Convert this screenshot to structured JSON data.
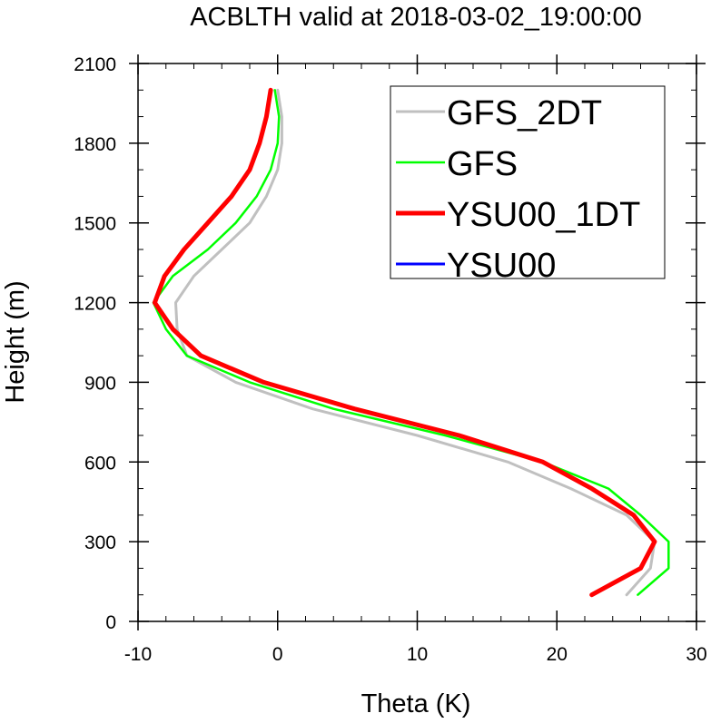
{
  "chart_data": {
    "type": "line",
    "title": "ACBLTH valid at 2018-03-02_19:00:00",
    "xlabel": "Theta (K)",
    "ylabel": "Height (m)",
    "xlim": [
      -10,
      30
    ],
    "ylim": [
      0,
      2100
    ],
    "xticks": [
      "-10",
      "0",
      "10",
      "20",
      "30"
    ],
    "yticks": [
      "0",
      "300",
      "600",
      "900",
      "1200",
      "1500",
      "1800",
      "2100"
    ],
    "legend_position": "top-right",
    "grid": false,
    "series": [
      {
        "name": "GFS_2DT",
        "color": "#c0c0c0",
        "points": [
          [
            25.0,
            100
          ],
          [
            26.7,
            200
          ],
          [
            27.0,
            300
          ],
          [
            25.0,
            400
          ],
          [
            21.0,
            500
          ],
          [
            16.5,
            600
          ],
          [
            10.0,
            700
          ],
          [
            2.5,
            800
          ],
          [
            -3.0,
            900
          ],
          [
            -6.5,
            1000
          ],
          [
            -7.2,
            1100
          ],
          [
            -7.3,
            1200
          ],
          [
            -6.0,
            1300
          ],
          [
            -4.0,
            1400
          ],
          [
            -2.0,
            1500
          ],
          [
            -0.8,
            1600
          ],
          [
            0.0,
            1700
          ],
          [
            0.3,
            1800
          ],
          [
            0.3,
            1900
          ],
          [
            0.0,
            2000
          ]
        ]
      },
      {
        "name": "GFS",
        "color": "#00ff00",
        "points": [
          [
            25.8,
            100
          ],
          [
            28.0,
            200
          ],
          [
            28.0,
            300
          ],
          [
            26.0,
            400
          ],
          [
            23.7,
            500
          ],
          [
            19.0,
            600
          ],
          [
            12.0,
            700
          ],
          [
            4.0,
            800
          ],
          [
            -2.0,
            900
          ],
          [
            -6.5,
            1000
          ],
          [
            -8.0,
            1100
          ],
          [
            -8.9,
            1200
          ],
          [
            -7.5,
            1300
          ],
          [
            -5.0,
            1400
          ],
          [
            -3.0,
            1500
          ],
          [
            -1.5,
            1600
          ],
          [
            -0.5,
            1700
          ],
          [
            0.0,
            1800
          ],
          [
            0.1,
            1900
          ],
          [
            -0.2,
            2000
          ]
        ]
      },
      {
        "name": "YSU00_1DT",
        "color": "#ff0000",
        "points": [
          [
            22.5,
            100
          ],
          [
            26.0,
            200
          ],
          [
            27.0,
            300
          ],
          [
            25.5,
            400
          ],
          [
            22.5,
            500
          ],
          [
            19.0,
            600
          ],
          [
            13.0,
            700
          ],
          [
            5.5,
            800
          ],
          [
            -1.0,
            900
          ],
          [
            -5.5,
            1000
          ],
          [
            -7.5,
            1100
          ],
          [
            -8.8,
            1200
          ],
          [
            -8.1,
            1300
          ],
          [
            -6.7,
            1400
          ],
          [
            -5.0,
            1500
          ],
          [
            -3.3,
            1600
          ],
          [
            -2.0,
            1700
          ],
          [
            -1.3,
            1800
          ],
          [
            -0.8,
            1900
          ],
          [
            -0.5,
            2000
          ]
        ]
      },
      {
        "name": "YSU00",
        "color": "#0000ff",
        "points": [
          [
            22.5,
            100
          ],
          [
            26.0,
            200
          ],
          [
            27.0,
            300
          ],
          [
            25.5,
            400
          ],
          [
            22.5,
            500
          ],
          [
            19.0,
            600
          ],
          [
            13.0,
            700
          ],
          [
            5.5,
            800
          ],
          [
            -1.0,
            900
          ],
          [
            -5.5,
            1000
          ],
          [
            -7.5,
            1100
          ],
          [
            -8.8,
            1200
          ],
          [
            -8.1,
            1300
          ],
          [
            -6.7,
            1400
          ],
          [
            -5.0,
            1500
          ],
          [
            -3.3,
            1600
          ],
          [
            -2.0,
            1700
          ],
          [
            -1.3,
            1800
          ],
          [
            -0.8,
            1900
          ],
          [
            -0.5,
            2000
          ]
        ]
      }
    ]
  }
}
